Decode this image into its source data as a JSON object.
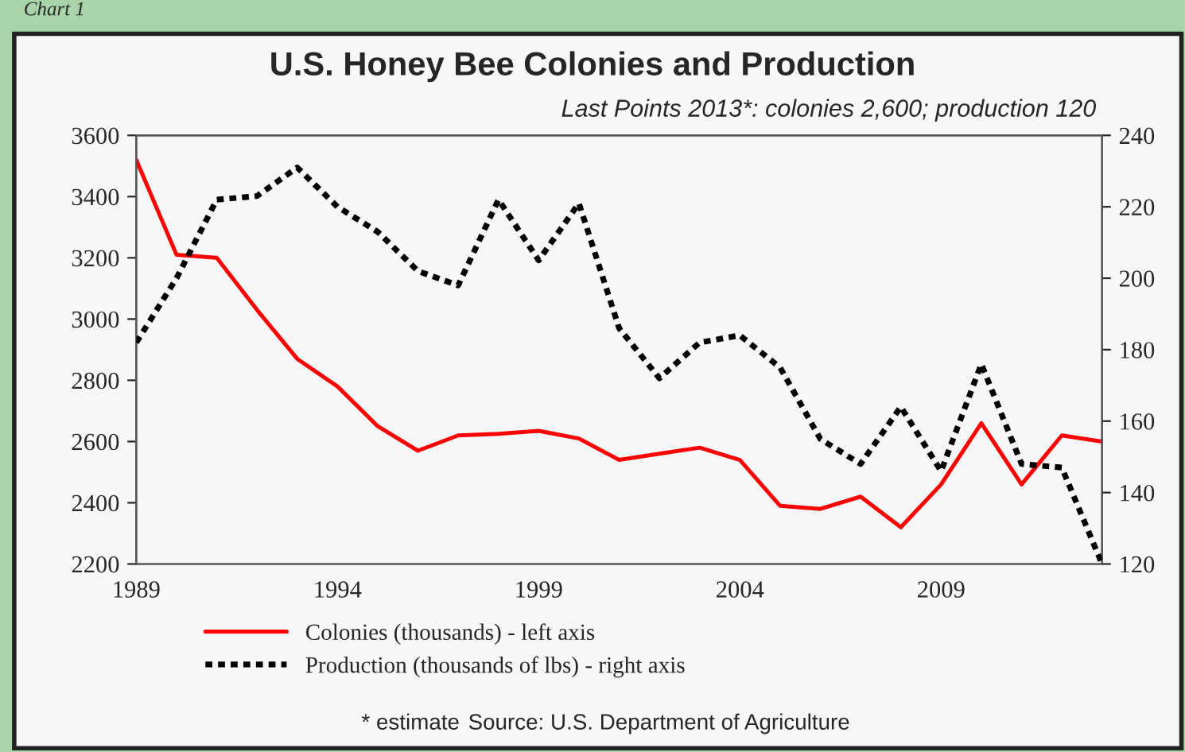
{
  "chart_data": {
    "type": "line",
    "title": "U.S. Honey Bee Colonies and Production",
    "subtitle": "Last Points 2013*: colonies 2,600; production 120",
    "x": [
      1989,
      1990,
      1991,
      1992,
      1993,
      1994,
      1995,
      1996,
      1997,
      1998,
      1999,
      2000,
      2001,
      2002,
      2003,
      2004,
      2005,
      2006,
      2007,
      2008,
      2009,
      2010,
      2011,
      2012,
      2013
    ],
    "series": [
      {
        "name": "Colonies (thousands) - left axis",
        "color": "#ff0000",
        "line_style": "solid",
        "values": [
          3520,
          3210,
          3200,
          3030,
          2870,
          2780,
          2650,
          2570,
          2620,
          2625,
          2635,
          2610,
          2540,
          2560,
          2580,
          2540,
          2390,
          2380,
          2420,
          2320,
          2460,
          2660,
          2460,
          2620,
          2600
        ]
      },
      {
        "name": "Production (thousands of lbs) - right axis",
        "color": "#000000",
        "line_style": "dotted",
        "axis": "y2",
        "values": [
          182,
          200,
          222,
          223,
          231,
          220,
          213,
          202,
          198,
          222,
          205,
          221,
          186,
          172,
          182,
          184,
          175,
          155,
          148,
          164,
          146,
          176,
          148,
          147,
          120
        ]
      }
    ],
    "xlim": [
      1989,
      2013
    ],
    "xticks": [
      1989,
      1994,
      1999,
      2004,
      2009
    ],
    "ylim": [
      2200,
      3600
    ],
    "yticks": [
      2200,
      2400,
      2600,
      2800,
      3000,
      3200,
      3400,
      3600
    ],
    "y2lim": [
      120,
      240
    ],
    "y2ticks": [
      120,
      140,
      160,
      180,
      200,
      220,
      240
    ],
    "grid": false,
    "legend": "bottom",
    "marker": "none",
    "annotations": [
      "Chart 1",
      "* estimate",
      "Source: U.S. Department of Agriculture"
    ]
  }
}
